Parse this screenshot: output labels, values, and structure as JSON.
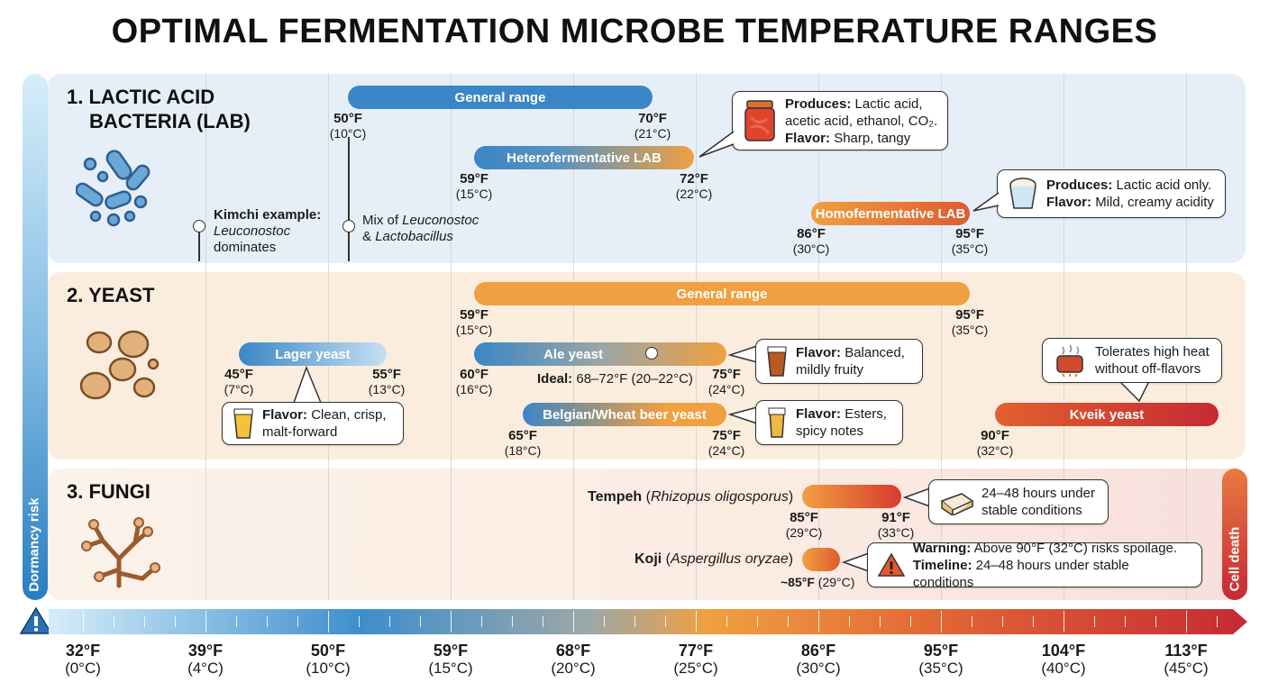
{
  "title": "OPTIMAL FERMENTATION MICROBE TEMPERATURE RANGES",
  "side": {
    "dormancy": "Dormancy risk",
    "death": "Cell death"
  },
  "axis": [
    {
      "f": "32°F",
      "c": "(0°C)"
    },
    {
      "f": "39°F",
      "c": "(4°C)"
    },
    {
      "f": "50°F",
      "c": "(10°C)"
    },
    {
      "f": "59°F",
      "c": "(15°C)"
    },
    {
      "f": "68°F",
      "c": "(20°C)"
    },
    {
      "f": "77°F",
      "c": "(25°C)"
    },
    {
      "f": "86°F",
      "c": "(30°C)"
    },
    {
      "f": "95°F",
      "c": "(35°C)"
    },
    {
      "f": "104°F",
      "c": "(40°C)"
    },
    {
      "f": "113°F",
      "c": "(45°C)"
    }
  ],
  "lab": {
    "title_line1": "1. LACTIC ACID",
    "title_line2": "BACTERIA (LAB)",
    "general": {
      "label": "General range",
      "low_f": "50°F",
      "low_c": "(10°C)",
      "high_f": "70°F",
      "high_c": "(21°C)"
    },
    "hetero": {
      "label": "Heterofermentative LAB",
      "low_f": "59°F",
      "low_c": "(15°C)",
      "high_f": "72°F",
      "high_c": "(22°C)"
    },
    "homo": {
      "label": "Homofermentative LAB",
      "low_f": "86°F",
      "low_c": "(30°C)",
      "high_f": "95°F",
      "high_c": "(35°C)"
    },
    "hetero_callout": {
      "produces_label": "Produces:",
      "produces": "Lactic acid,",
      "produces_line2": "acetic acid, ethanol, CO₂.",
      "flavor_label": "Flavor:",
      "flavor": "Sharp, tangy"
    },
    "homo_callout": {
      "produces_label": "Produces:",
      "produces": "Lactic acid only.",
      "flavor_label": "Flavor:",
      "flavor": "Mild, creamy acidity"
    },
    "kimchi": {
      "label": "Kimchi example:",
      "line2": "Leuconostoc",
      "line3": "dominates"
    },
    "mix": {
      "line1_a": "Mix of ",
      "line1_b": "Leuconostoc",
      "line2_a": "& ",
      "line2_b": "Lactobacillus"
    }
  },
  "yeast": {
    "title": "2. YEAST",
    "general": {
      "label": "General range",
      "low_f": "59°F",
      "low_c": "(15°C)",
      "high_f": "95°F",
      "high_c": "(35°C)"
    },
    "lager": {
      "label": "Lager yeast",
      "low_f": "45°F",
      "low_c": "(7°C)",
      "high_f": "55°F",
      "high_c": "(13°C)"
    },
    "lager_callout": {
      "flavor_label": "Flavor:",
      "flavor": "Clean, crisp,",
      "flavor_line2": "malt-forward"
    },
    "ale": {
      "label": "Ale yeast",
      "low_f": "60°F",
      "low_c": "(16°C)",
      "high_f": "75°F",
      "high_c": "(24°C)",
      "ideal_label": "Ideal:",
      "ideal": "68–72°F (20–22°C)"
    },
    "ale_callout": {
      "flavor_label": "Flavor:",
      "flavor": "Balanced,",
      "flavor_line2": "mildly fruity"
    },
    "belgian": {
      "label": "Belgian/Wheat beer yeast",
      "low_f": "65°F",
      "low_c": "(18°C)",
      "high_f": "75°F",
      "high_c": "(24°C)"
    },
    "belgian_callout": {
      "flavor_label": "Flavor:",
      "flavor": "Esters,",
      "flavor_line2": "spicy notes"
    },
    "kveik": {
      "label": "Kveik yeast",
      "low_f": "90°F",
      "low_c": "(32°C)"
    },
    "kveik_callout": {
      "line1": "Tolerates high heat",
      "line2": "without off-flavors"
    }
  },
  "fungi": {
    "title": "3. FUNGI",
    "tempeh": {
      "name": "Tempeh",
      "sci": "Rhizopus oligosporus",
      "low_f": "85°F",
      "low_c": "(29°C)",
      "high_f": "91°F",
      "high_c": "(33°C)"
    },
    "tempeh_callout": {
      "line1": "24–48 hours under",
      "line2": "stable conditions"
    },
    "koji": {
      "name": "Koji",
      "sci": "Aspergillus oryzae",
      "temp_f": "~85°F",
      "temp_c": "(29°C)"
    },
    "koji_callout": {
      "warning_label": "Warning:",
      "warning": "Above 90°F (32°C) risks spoilage.",
      "timeline_label": "Timeline:",
      "timeline": "24–48 hours under stable conditions"
    }
  },
  "colors": {
    "cold": "#3d8ecd",
    "mid": "#f0a040",
    "hot": "#c62a34",
    "lab_panel": "#e6eff8",
    "yeast_panel": "#fbeddd"
  }
}
